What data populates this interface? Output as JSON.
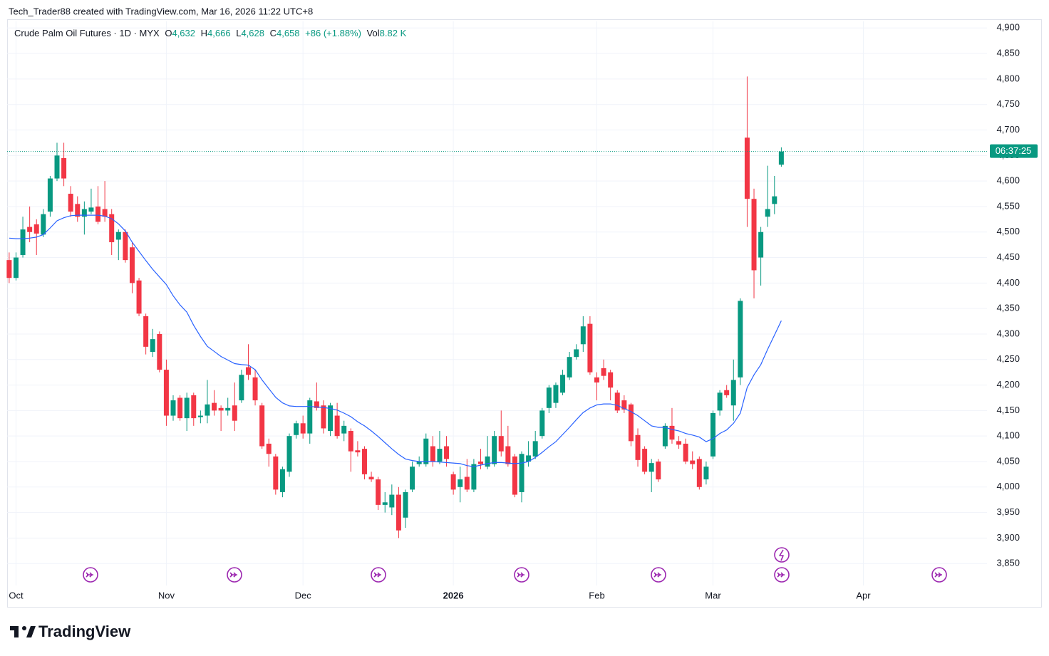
{
  "header": {
    "attribution": "Tech_Trader88 created with TradingView.com, Mar 16, 2026 11:22 UTC+8"
  },
  "chart_data": {
    "type": "candlestick",
    "title": "Crude Palm Oil Futures · 1D · MYX",
    "legend": {
      "open_label": "O",
      "open": {
        "value": 4632,
        "label": "4,632"
      },
      "high_label": "H",
      "high": {
        "value": 4666,
        "label": "4,666"
      },
      "low_label": "L",
      "low": {
        "value": 4628,
        "label": "4,628"
      },
      "close_label": "C",
      "close": {
        "value": 4658,
        "label": "4,658"
      },
      "change": "+86 (+1.88%)",
      "volume_label": "Vol",
      "volume": "8.82 K"
    },
    "countdown": "06:37:25",
    "up_color": "#089981",
    "down_color": "#f23645",
    "grid": true,
    "xlim": [
      -0.3,
      143.1
    ],
    "xticks": [
      {
        "value": 1,
        "label": "Oct"
      },
      {
        "value": 23,
        "label": "Nov"
      },
      {
        "value": 43,
        "label": "Dec"
      },
      {
        "value": 65,
        "label": "2026"
      },
      {
        "value": 86,
        "label": "Feb"
      },
      {
        "value": 103,
        "label": "Mar"
      },
      {
        "value": 125,
        "label": "Apr"
      }
    ],
    "ylim": [
      3807,
      4913
    ],
    "yticks": [
      {
        "value": 3850,
        "label": "3,850"
      },
      {
        "value": 3900,
        "label": "3,900"
      },
      {
        "value": 3950,
        "label": "3,950"
      },
      {
        "value": 4000,
        "label": "4,000"
      },
      {
        "value": 4050,
        "label": "4,050"
      },
      {
        "value": 4100,
        "label": "4,100"
      },
      {
        "value": 4150,
        "label": "4,150"
      },
      {
        "value": 4200,
        "label": "4,200"
      },
      {
        "value": 4250,
        "label": "4,250"
      },
      {
        "value": 4300,
        "label": "4,300"
      },
      {
        "value": 4350,
        "label": "4,350"
      },
      {
        "value": 4400,
        "label": "4,400"
      },
      {
        "value": 4450,
        "label": "4,450"
      },
      {
        "value": 4500,
        "label": "4,500"
      },
      {
        "value": 4550,
        "label": "4,550"
      },
      {
        "value": 4600,
        "label": "4,600"
      },
      {
        "value": 4650,
        "label": "4,650"
      },
      {
        "value": 4700,
        "label": "4,700"
      },
      {
        "value": 4750,
        "label": "4,750"
      },
      {
        "value": 4800,
        "label": "4,800"
      },
      {
        "value": 4850,
        "label": "4,850"
      },
      {
        "value": 4900,
        "label": "4,900"
      }
    ],
    "open": [
      4445,
      4410,
      4455,
      4510,
      4515,
      4495,
      4540,
      4605,
      4645,
      4575,
      4555,
      4530,
      4540,
      4550,
      4545,
      4535,
      4485,
      4500,
      4470,
      4405,
      4335,
      4265,
      4300,
      4230,
      4140,
      4175,
      4135,
      4180,
      4137,
      4140,
      4165,
      4155,
      4150,
      4160,
      4170,
      4235,
      4215,
      4160,
      4085,
      4060,
      3990,
      4030,
      4102,
      4125,
      4105,
      4168,
      4160,
      4110,
      4140,
      4105,
      4110,
      4072,
      4075,
      4020,
      4015,
      3965,
      3960,
      3985,
      3940,
      3995,
      4045,
      4045,
      4080,
      4050,
      4080,
      4025,
      4000,
      4020,
      3995,
      4050,
      4040,
      4045,
      4100,
      4080,
      4060,
      3990,
      4050,
      4060,
      4100,
      4155,
      4165,
      4185,
      4215,
      4255,
      4280,
      4320,
      4215,
      4233,
      4225,
      4185,
      4170,
      4162,
      4102,
      4075,
      4030,
      4050,
      4080,
      4120,
      4090,
      4085,
      4052,
      4055,
      4015,
      4060,
      4150,
      4190,
      4160,
      4215,
      4685,
      4565,
      4450,
      4530,
      4555,
      4632
    ],
    "high": [
      4460,
      4460,
      4530,
      4550,
      4525,
      4545,
      4610,
      4675,
      4675,
      4590,
      4570,
      4560,
      4585,
      4590,
      4600,
      4545,
      4505,
      4505,
      4480,
      4410,
      4340,
      4310,
      4305,
      4250,
      4180,
      4180,
      4185,
      4185,
      4150,
      4210,
      4190,
      4160,
      4175,
      4205,
      4230,
      4280,
      4230,
      4165,
      4095,
      4065,
      4040,
      4105,
      4130,
      4140,
      4175,
      4205,
      4170,
      4165,
      4165,
      4130,
      4115,
      4090,
      4080,
      4030,
      4020,
      3990,
      4005,
      4000,
      3995,
      4050,
      4060,
      4105,
      4100,
      4110,
      4100,
      4030,
      4040,
      4055,
      4055,
      4075,
      4100,
      4110,
      4150,
      4120,
      4065,
      4070,
      4090,
      4110,
      4155,
      4200,
      4205,
      4230,
      4265,
      4280,
      4335,
      4335,
      4225,
      4250,
      4230,
      4190,
      4180,
      4165,
      4115,
      4080,
      4055,
      4055,
      4125,
      4155,
      4100,
      4095,
      4070,
      4060,
      4050,
      4150,
      4190,
      4200,
      4250,
      4370,
      4805,
      4585,
      4510,
      4630,
      4610,
      4666
    ],
    "low": [
      4400,
      4405,
      4450,
      4480,
      4455,
      4490,
      4530,
      4600,
      4590,
      4530,
      4520,
      4495,
      4535,
      4515,
      4520,
      4455,
      4445,
      4440,
      4380,
      4335,
      4260,
      4255,
      4225,
      4120,
      4130,
      4130,
      4110,
      4120,
      4125,
      4125,
      4140,
      4110,
      4140,
      4110,
      4165,
      4210,
      4160,
      4075,
      4040,
      3985,
      3980,
      4020,
      4095,
      4095,
      4085,
      4150,
      4105,
      4100,
      4095,
      4090,
      4030,
      4060,
      4015,
      4010,
      3955,
      3950,
      3945,
      3900,
      3920,
      3990,
      4040,
      4040,
      4040,
      4045,
      4040,
      3985,
      3970,
      3990,
      3990,
      4035,
      4035,
      4040,
      4060,
      4040,
      3980,
      3970,
      4040,
      4055,
      4095,
      4145,
      4155,
      4180,
      4210,
      4250,
      4265,
      4220,
      4170,
      4210,
      4170,
      4145,
      4145,
      4080,
      4040,
      4025,
      3990,
      4010,
      4075,
      4085,
      4075,
      4045,
      4035,
      3995,
      4005,
      4055,
      4140,
      4175,
      4130,
      4200,
      4510,
      4370,
      4395,
      4510,
      4535,
      4628
    ],
    "close": [
      4410,
      4450,
      4505,
      4500,
      4497,
      4535,
      4605,
      4650,
      4605,
      4540,
      4530,
      4545,
      4548,
      4520,
      4530,
      4480,
      4500,
      4445,
      4400,
      4340,
      4275,
      4290,
      4230,
      4140,
      4170,
      4135,
      4175,
      4135,
      4140,
      4162,
      4150,
      4150,
      4155,
      4130,
      4220,
      4220,
      4170,
      4080,
      4065,
      3995,
      4035,
      4100,
      4125,
      4105,
      4170,
      4155,
      4115,
      4160,
      4100,
      4120,
      4070,
      4068,
      4025,
      4015,
      3965,
      3970,
      3985,
      3915,
      3990,
      4040,
      4050,
      4095,
      4050,
      4075,
      4055,
      3995,
      4015,
      3995,
      4045,
      4045,
      4060,
      4100,
      4070,
      4045,
      3985,
      4065,
      4062,
      4090,
      4150,
      4195,
      4200,
      4220,
      4255,
      4270,
      4315,
      4225,
      4205,
      4218,
      4195,
      4150,
      4152,
      4090,
      4053,
      4030,
      4047,
      4015,
      4120,
      4093,
      4083,
      4050,
      4045,
      4000,
      4040,
      4145,
      4185,
      4180,
      4210,
      4365,
      4565,
      4425,
      4500,
      4545,
      4570,
      4658
    ],
    "moving_average": {
      "color": "#2962ff",
      "values": [
        4488,
        4487,
        4487,
        4488,
        4490,
        4495,
        4508,
        4522,
        4528,
        4532,
        4533,
        4533,
        4533,
        4533,
        4531,
        4526,
        4516,
        4502,
        4480,
        4462,
        4444,
        4427,
        4412,
        4397,
        4375,
        4357,
        4343,
        4317,
        4295,
        4276,
        4266,
        4256,
        4249,
        4242,
        4240,
        4239,
        4230,
        4210,
        4193,
        4176,
        4165,
        4159,
        4158,
        4158,
        4158,
        4157,
        4156,
        4154,
        4151,
        4145,
        4138,
        4128,
        4120,
        4110,
        4099,
        4087,
        4075,
        4064,
        4055,
        4052,
        4050,
        4050,
        4050,
        4049,
        4048,
        4047,
        4046,
        4042,
        4040,
        4043,
        4046,
        4048,
        4048,
        4047,
        4046,
        4047,
        4050,
        4058,
        4068,
        4079,
        4089,
        4103,
        4117,
        4132,
        4146,
        4155,
        4161,
        4163,
        4163,
        4160,
        4154,
        4148,
        4140,
        4130,
        4120,
        4117,
        4117,
        4113,
        4110,
        4105,
        4102,
        4098,
        4089,
        4095,
        4105,
        4112,
        4125,
        4145,
        4195,
        4220,
        4240,
        4270,
        4298,
        4326
      ]
    }
  },
  "footer": {
    "logo": "TradingView"
  }
}
